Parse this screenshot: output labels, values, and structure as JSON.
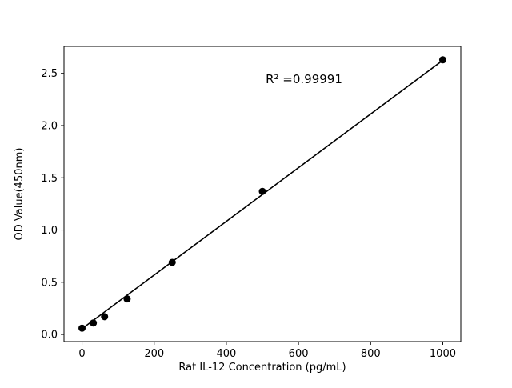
{
  "chart_data": {
    "type": "scatter",
    "title": "",
    "xlabel": "Rat IL-12 Concentration (pg/mL)",
    "ylabel": "OD Value(450nm)",
    "annotation": "R² =0.99991",
    "x": [
      0,
      31.25,
      62.5,
      125,
      250,
      500,
      1000
    ],
    "y": [
      0.06,
      0.11,
      0.17,
      0.34,
      0.69,
      1.37,
      2.63
    ],
    "fit_line": {
      "x": [
        0,
        1000
      ],
      "y": [
        0.055,
        2.625
      ]
    },
    "xlim": [
      -50,
      1050
    ],
    "ylim": [
      -0.0685,
      2.7585
    ],
    "xticks": [
      0,
      200,
      400,
      600,
      800,
      1000
    ],
    "yticks": [
      0.0,
      0.5,
      1.0,
      1.5,
      2.0,
      2.5
    ],
    "grid": false,
    "legend": "none",
    "point_color": "#000000",
    "line_color": "#000000",
    "axes_color": "#000000",
    "background": "#ffffff"
  }
}
